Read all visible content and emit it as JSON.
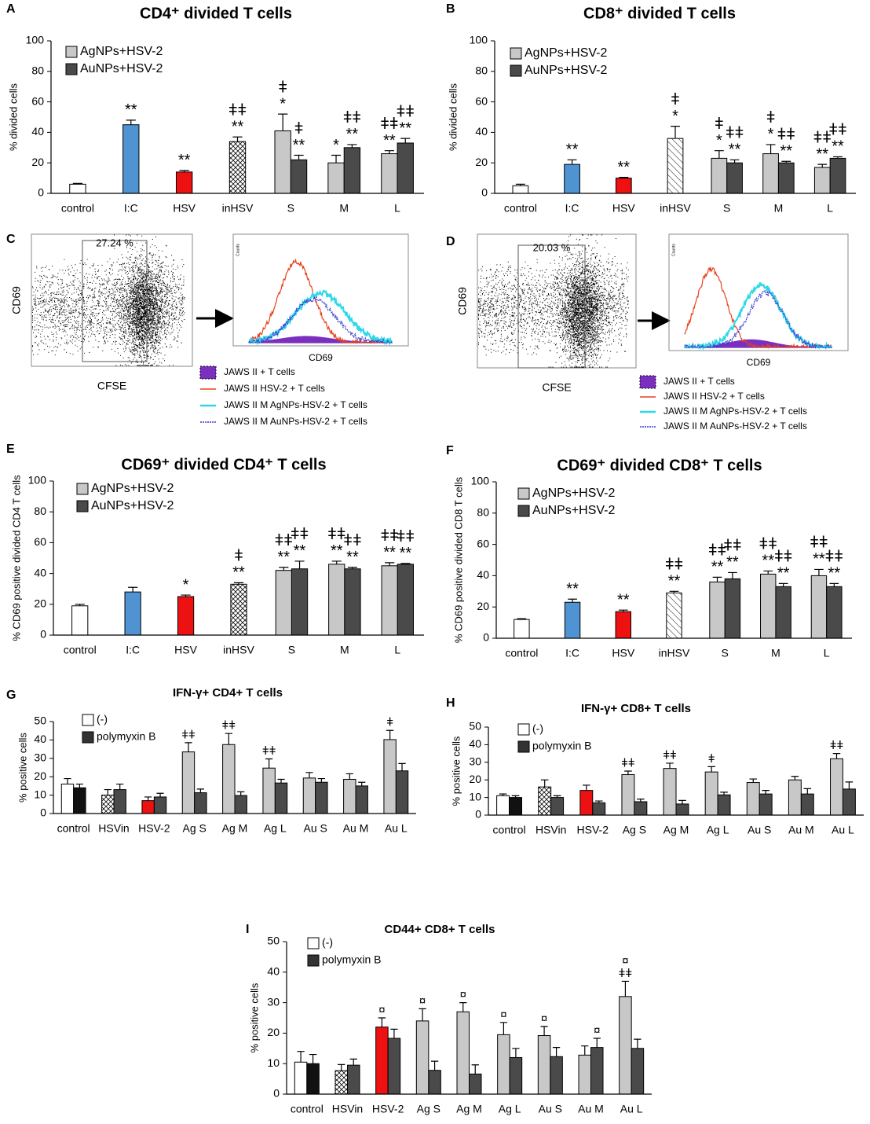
{
  "chart_data": [
    {
      "type": "bar",
      "panel": "A",
      "title": "CD4⁺ divided T cells",
      "ylabel": "% divided cells",
      "categories": [
        "control",
        "I:C",
        "HSV",
        "inHSV",
        "S",
        "M",
        "L"
      ],
      "ylim": [
        0,
        100
      ],
      "yticks": [
        0,
        20,
        40,
        60,
        80,
        100
      ],
      "series": [
        {
          "values": [
            6,
            45,
            14,
            34,
            null,
            null,
            null
          ],
          "errors": [
            0.5,
            3,
            1,
            3,
            null,
            null,
            null
          ],
          "colors": [
            "#ffffff",
            "#4f93d2",
            "#ee1111",
            "#ffffff",
            null,
            null,
            null
          ],
          "hatch": [
            null,
            null,
            null,
            "diamond",
            null,
            null,
            null
          ],
          "annotations": [
            null,
            [
              "**"
            ],
            [
              "**"
            ],
            [
              "ǂǂ",
              "**"
            ],
            null,
            null,
            null
          ]
        },
        {
          "name": "AgNPs+HSV-2",
          "color": "#c8c8c8",
          "values": [
            null,
            null,
            null,
            null,
            41,
            20,
            26
          ],
          "errors": [
            null,
            null,
            null,
            null,
            11,
            5,
            2
          ],
          "annotations": [
            null,
            null,
            null,
            null,
            [
              "ǂ",
              "*"
            ],
            [
              "*"
            ],
            [
              "ǂǂ",
              "**"
            ]
          ]
        },
        {
          "name": "AuNPs+HSV-2",
          "color": "#4a4a4a",
          "values": [
            null,
            null,
            null,
            null,
            22,
            30,
            33
          ],
          "errors": [
            null,
            null,
            null,
            null,
            3,
            2,
            3
          ],
          "annotations": [
            null,
            null,
            null,
            null,
            [
              "ǂ",
              "**"
            ],
            [
              "ǂǂ",
              "**"
            ],
            [
              "ǂǂ",
              "**"
            ]
          ]
        }
      ]
    },
    {
      "type": "bar",
      "panel": "B",
      "title": "CD8⁺ divided T cells",
      "ylabel": "% divided cells",
      "categories": [
        "control",
        "I:C",
        "HSV",
        "inHSV",
        "S",
        "M",
        "L"
      ],
      "ylim": [
        0,
        100
      ],
      "yticks": [
        0,
        20,
        40,
        60,
        80,
        100
      ],
      "series": [
        {
          "values": [
            5,
            19,
            10,
            36,
            null,
            null,
            null
          ],
          "errors": [
            1,
            3,
            0.5,
            8,
            null,
            null,
            null
          ],
          "colors": [
            "#ffffff",
            "#4f93d2",
            "#ee1111",
            "#ffffff",
            null,
            null,
            null
          ],
          "hatch": [
            null,
            null,
            null,
            "diagonal",
            null,
            null,
            null
          ],
          "annotations": [
            null,
            [
              "**"
            ],
            [
              "**"
            ],
            [
              "ǂ",
              "*"
            ],
            null,
            null,
            null
          ]
        },
        {
          "name": "AgNPs+HSV-2",
          "color": "#c8c8c8",
          "values": [
            null,
            null,
            null,
            null,
            23,
            26,
            17
          ],
          "errors": [
            null,
            null,
            null,
            null,
            5,
            6,
            2
          ],
          "annotations": [
            null,
            null,
            null,
            null,
            [
              "ǂ",
              "*"
            ],
            [
              "ǂ",
              "*"
            ],
            [
              "ǂǂ",
              "**"
            ]
          ]
        },
        {
          "name": "AuNPs+HSV-2",
          "color": "#4a4a4a",
          "values": [
            null,
            null,
            null,
            null,
            20,
            20,
            23
          ],
          "errors": [
            null,
            null,
            null,
            null,
            2,
            1,
            1
          ],
          "annotations": [
            null,
            null,
            null,
            null,
            [
              "ǂǂ",
              "**"
            ],
            [
              "ǂǂ",
              "**"
            ],
            [
              "ǂǂ",
              "**"
            ]
          ]
        }
      ]
    },
    {
      "type": "flow",
      "panel": "C",
      "gate_label": "27.24 %",
      "xlabel": "CFSE",
      "ylabel": "CD69",
      "hist_xlabel": "CD69",
      "hist_ylabel": "Counts",
      "legend": [
        {
          "name": "JAWS II + T cells",
          "color": "#7b2fbe",
          "style": "fill"
        },
        {
          "name": "JAWS II HSV-2 + T cells",
          "color": "#e8401c",
          "style": "line"
        },
        {
          "name": "JAWS II M AgNPs-HSV-2 + T cells",
          "color": "#2fd8e8",
          "style": "thick"
        },
        {
          "name": "JAWS II M AuNPs-HSV-2 + T cells",
          "color": "#3b3bd0",
          "style": "dotted"
        }
      ]
    },
    {
      "type": "flow",
      "panel": "D",
      "gate_label": "20.03 %",
      "xlabel": "CFSE",
      "ylabel": "CD69",
      "hist_xlabel": "CD69",
      "hist_ylabel": "Counts",
      "legend": [
        {
          "name": "JAWS II + T cells",
          "color": "#7b2fbe",
          "style": "fill"
        },
        {
          "name": "JAWS II HSV-2 + T cells",
          "color": "#e8401c",
          "style": "line"
        },
        {
          "name": "JAWS II M AgNPs-HSV-2 + T cells",
          "color": "#2fd8e8",
          "style": "thick"
        },
        {
          "name": "JAWS II M AuNPs-HSV-2 + T cells",
          "color": "#3b3bd0",
          "style": "dotted"
        }
      ]
    },
    {
      "type": "bar",
      "panel": "E",
      "title": "CD69⁺ divided CD4⁺  T cells",
      "ylabel": "% CD69 positive divided CD4 T cells",
      "categories": [
        "control",
        "I:C",
        "HSV",
        "inHSV",
        "S",
        "M",
        "L"
      ],
      "ylim": [
        0,
        100
      ],
      "yticks": [
        0,
        20,
        40,
        60,
        80,
        100
      ],
      "series": [
        {
          "values": [
            19,
            28,
            25,
            33,
            null,
            null,
            null
          ],
          "errors": [
            1,
            3,
            1,
            1,
            null,
            null,
            null
          ],
          "colors": [
            "#ffffff",
            "#4f93d2",
            "#ee1111",
            "#ffffff",
            null,
            null,
            null
          ],
          "hatch": [
            null,
            null,
            null,
            "diamond",
            null,
            null,
            null
          ],
          "annotations": [
            null,
            null,
            [
              "*"
            ],
            [
              "ǂ",
              "**"
            ],
            null,
            null,
            null
          ]
        },
        {
          "name": "AgNPs+HSV-2",
          "color": "#c8c8c8",
          "values": [
            null,
            null,
            null,
            null,
            42,
            46,
            45
          ],
          "errors": [
            null,
            null,
            null,
            null,
            2,
            2,
            2
          ],
          "annotations": [
            null,
            null,
            null,
            null,
            [
              "ǂǂ",
              "**"
            ],
            [
              "ǂǂ",
              "**"
            ],
            [
              "ǂǂ",
              "**"
            ]
          ]
        },
        {
          "name": "AuNPs+HSV-2",
          "color": "#4a4a4a",
          "values": [
            null,
            null,
            null,
            null,
            43,
            43,
            46
          ],
          "errors": [
            null,
            null,
            null,
            null,
            5,
            1,
            0.5
          ],
          "annotations": [
            null,
            null,
            null,
            null,
            [
              "ǂǂ",
              "**"
            ],
            [
              "ǂǂ",
              "**"
            ],
            [
              "ǂǂ",
              "**"
            ]
          ]
        }
      ]
    },
    {
      "type": "bar",
      "panel": "F",
      "title": "CD69⁺ divided CD8⁺ T cells",
      "ylabel": "% CD69 positive divided CD8 T cells",
      "categories": [
        "control",
        "I:C",
        "HSV",
        "inHSV",
        "S",
        "M",
        "L"
      ],
      "ylim": [
        0,
        100
      ],
      "yticks": [
        0,
        20,
        40,
        60,
        80,
        100
      ],
      "series": [
        {
          "values": [
            12,
            23,
            17,
            29,
            null,
            null,
            null
          ],
          "errors": [
            0.5,
            2,
            1,
            1,
            null,
            null,
            null
          ],
          "colors": [
            "#ffffff",
            "#4f93d2",
            "#ee1111",
            "#ffffff",
            null,
            null,
            null
          ],
          "hatch": [
            null,
            null,
            null,
            "diagonal",
            null,
            null,
            null
          ],
          "annotations": [
            null,
            [
              "**"
            ],
            [
              "**"
            ],
            [
              "ǂǂ",
              "**"
            ],
            null,
            null,
            null
          ]
        },
        {
          "name": "AgNPs+HSV-2",
          "color": "#c8c8c8",
          "values": [
            null,
            null,
            null,
            null,
            36,
            41,
            40
          ],
          "errors": [
            null,
            null,
            null,
            null,
            3,
            2,
            4
          ],
          "annotations": [
            null,
            null,
            null,
            null,
            [
              "ǂǂ",
              "**"
            ],
            [
              "ǂǂ",
              "**"
            ],
            [
              "ǂǂ",
              "**"
            ]
          ]
        },
        {
          "name": "AuNPs+HSV-2",
          "color": "#4a4a4a",
          "values": [
            null,
            null,
            null,
            null,
            38,
            33,
            33
          ],
          "errors": [
            null,
            null,
            null,
            null,
            4,
            2,
            2
          ],
          "annotations": [
            null,
            null,
            null,
            null,
            [
              "ǂǂ",
              "**"
            ],
            [
              "ǂǂ",
              "**"
            ],
            [
              "ǂǂ",
              "**"
            ]
          ]
        }
      ]
    },
    {
      "type": "bar",
      "panel": "G",
      "title": "IFN-γ+ CD4+ T cells",
      "ylabel": "% positive cells",
      "categories": [
        "control",
        "HSVin",
        "HSV-2",
        "Ag S",
        "Ag M",
        "Ag L",
        "Au S",
        "Au M",
        "Au L"
      ],
      "ylim": [
        0,
        50
      ],
      "yticks": [
        0,
        10,
        20,
        30,
        40,
        50
      ],
      "series": [
        {
          "name": "(-)",
          "color": "#ffffff",
          "values": [
            16,
            10,
            7,
            33.5,
            37.5,
            24.7,
            19.3,
            18.6,
            40.2
          ],
          "errors": [
            3,
            3,
            2,
            5,
            6,
            5,
            3,
            3,
            5
          ],
          "colors": [
            "#ffffff",
            "#ffffff",
            "#ee1111",
            "#c8c8c8",
            "#c8c8c8",
            "#c8c8c8",
            "#c8c8c8",
            "#c8c8c8",
            "#c8c8c8"
          ],
          "hatch": [
            null,
            "diamond",
            null,
            null,
            null,
            null,
            null,
            null,
            null
          ],
          "annotations": [
            null,
            null,
            null,
            [
              "ǂǂ"
            ],
            [
              "ǂǂ"
            ],
            [
              "ǂǂ"
            ],
            null,
            null,
            [
              "ǂ"
            ]
          ]
        },
        {
          "name": "polymyxin B",
          "color": "#333333",
          "values": [
            14,
            13,
            9,
            11.3,
            9.8,
            16.6,
            17,
            15,
            23.2
          ],
          "errors": [
            2,
            3,
            2,
            2,
            2,
            2,
            2,
            2,
            4
          ],
          "colors": [
            "#111111",
            "#4a4a4a",
            "#4a4a4a",
            "#4a4a4a",
            "#4a4a4a",
            "#4a4a4a",
            "#4a4a4a",
            "#4a4a4a",
            "#4a4a4a"
          ]
        }
      ]
    },
    {
      "type": "bar",
      "panel": "H",
      "title": "IFN-γ+ CD8+ T cells",
      "ylabel": "% positive cells",
      "categories": [
        "control",
        "HSVin",
        "HSV-2",
        "Ag S",
        "Ag M",
        "Ag L",
        "Au S",
        "Au M",
        "Au L"
      ],
      "ylim": [
        0,
        50
      ],
      "yticks": [
        0,
        10,
        20,
        30,
        40,
        50
      ],
      "series": [
        {
          "name": "(-)",
          "color": "#ffffff",
          "values": [
            11,
            16,
            14,
            23,
            26.5,
            24.5,
            18.5,
            20,
            32
          ],
          "errors": [
            1,
            4,
            3,
            2,
            3,
            3,
            2,
            2,
            3
          ],
          "colors": [
            "#ffffff",
            "#ffffff",
            "#ee1111",
            "#c8c8c8",
            "#c8c8c8",
            "#c8c8c8",
            "#c8c8c8",
            "#c8c8c8",
            "#c8c8c8"
          ],
          "hatch": [
            null,
            "diamond",
            null,
            null,
            null,
            null,
            null,
            null,
            null
          ],
          "annotations": [
            null,
            null,
            null,
            [
              "ǂǂ"
            ],
            [
              "ǂǂ"
            ],
            [
              "ǂ"
            ],
            null,
            null,
            [
              "ǂǂ"
            ]
          ]
        },
        {
          "name": "polymyxin B",
          "color": "#333333",
          "values": [
            10,
            10,
            7,
            7.6,
            6.3,
            11.5,
            12,
            12,
            14.8
          ],
          "errors": [
            1,
            1,
            1,
            1.5,
            2,
            1.5,
            2,
            3,
            4
          ],
          "colors": [
            "#111111",
            "#4a4a4a",
            "#4a4a4a",
            "#4a4a4a",
            "#4a4a4a",
            "#4a4a4a",
            "#4a4a4a",
            "#4a4a4a",
            "#4a4a4a"
          ]
        }
      ]
    },
    {
      "type": "bar",
      "panel": "I",
      "title": "CD44+ CD8+ T cells",
      "ylabel": "% positive cells",
      "categories": [
        "control",
        "HSVin",
        "HSV-2",
        "Ag S",
        "Ag M",
        "Ag L",
        "Au S",
        "Au M",
        "Au L"
      ],
      "ylim": [
        0,
        50
      ],
      "yticks": [
        0,
        10,
        20,
        30,
        40,
        50
      ],
      "series": [
        {
          "name": "(-)",
          "color": "#ffffff",
          "values": [
            10.5,
            7.7,
            22,
            24,
            27,
            19.5,
            19.2,
            12.8,
            32
          ],
          "errors": [
            3.5,
            2,
            3,
            4,
            3,
            4,
            3,
            3,
            5
          ],
          "colors": [
            "#ffffff",
            "#ffffff",
            "#ee1111",
            "#c8c8c8",
            "#c8c8c8",
            "#c8c8c8",
            "#c8c8c8",
            "#c8c8c8",
            "#c8c8c8"
          ],
          "hatch": [
            null,
            "diamond",
            null,
            null,
            null,
            null,
            null,
            null,
            null
          ],
          "annotations": [
            null,
            null,
            [
              "¤"
            ],
            [
              "¤"
            ],
            [
              "¤"
            ],
            [
              "¤"
            ],
            [
              "¤"
            ],
            null,
            [
              "¤",
              "ǂǂ"
            ]
          ]
        },
        {
          "name": "polymyxin B",
          "color": "#333333",
          "values": [
            10,
            9.5,
            18.3,
            7.8,
            6.6,
            12,
            12.3,
            15.3,
            15
          ],
          "errors": [
            3,
            2,
            3,
            3,
            3,
            3,
            3,
            3,
            3
          ],
          "colors": [
            "#111111",
            "#4a4a4a",
            "#4a4a4a",
            "#4a4a4a",
            "#4a4a4a",
            "#4a4a4a",
            "#4a4a4a",
            "#4a4a4a",
            "#4a4a4a"
          ],
          "annotations": [
            null,
            null,
            null,
            null,
            null,
            null,
            null,
            [
              "¤"
            ],
            null
          ]
        }
      ]
    }
  ]
}
